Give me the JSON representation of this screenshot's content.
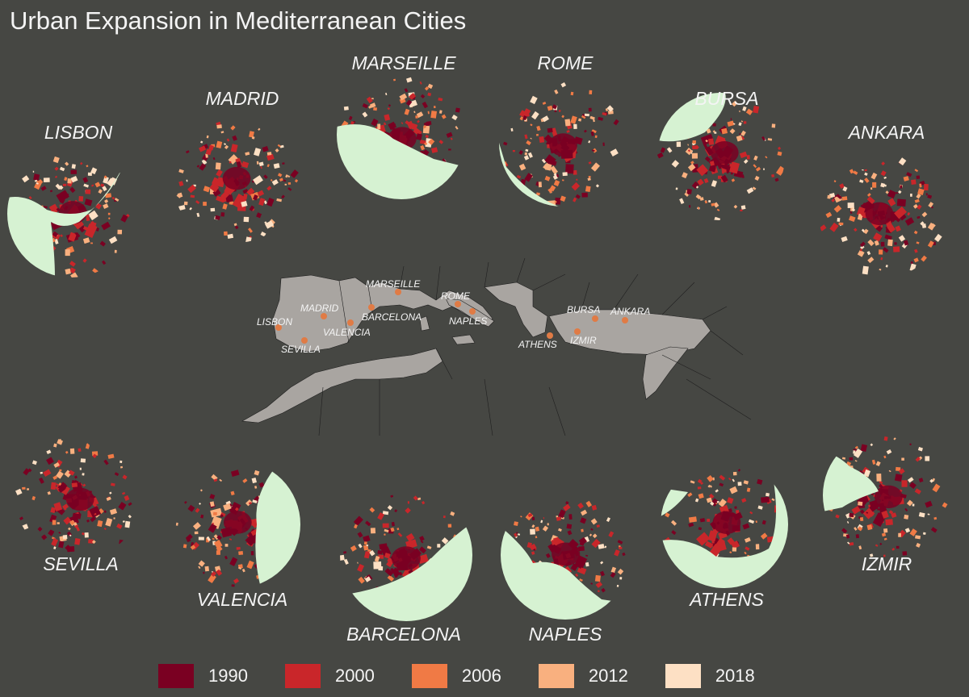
{
  "title": "Urban Expansion in Mediterranean Cities",
  "legend": [
    {
      "year": "1990",
      "color": "#7a0022"
    },
    {
      "year": "2000",
      "color": "#c9262a"
    },
    {
      "year": "2006",
      "color": "#f07a45"
    },
    {
      "year": "2012",
      "color": "#f9b07f"
    },
    {
      "year": "2018",
      "color": "#fde0c4"
    }
  ],
  "colors": {
    "background": "#464743",
    "water": "#d6f2d2",
    "land": "#a9a5a1",
    "borders": "#1f1f1f",
    "city_point": "#e07b45"
  },
  "cities": [
    {
      "name": "LISBON"
    },
    {
      "name": "MADRID"
    },
    {
      "name": "MARSEILLE"
    },
    {
      "name": "ROME"
    },
    {
      "name": "BURSA"
    },
    {
      "name": "ANKARA"
    },
    {
      "name": "SEVILLA"
    },
    {
      "name": "VALENCIA"
    },
    {
      "name": "BARCELONA"
    },
    {
      "name": "NAPLES"
    },
    {
      "name": "ATHENS"
    },
    {
      "name": "IZMIR"
    }
  ],
  "overview_labels": [
    "MARSEILLE",
    "ROME",
    "MADRID",
    "BARCELONA",
    "LISBON",
    "VALENCIA",
    "NAPLES",
    "BURSA",
    "ANKARA",
    "ATHENS",
    "IZMIR",
    "SEVILLA"
  ]
}
